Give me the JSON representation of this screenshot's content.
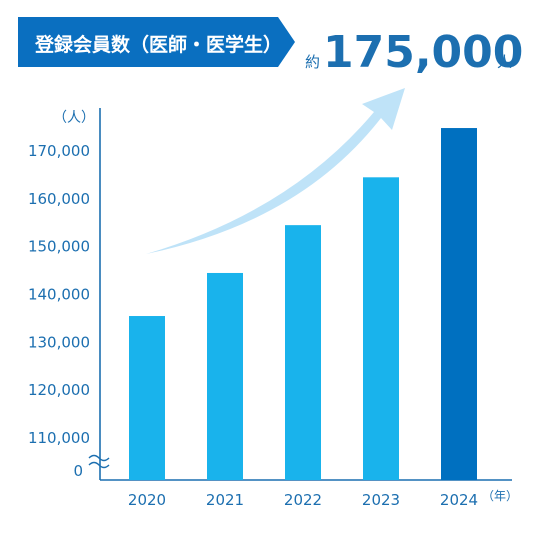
{
  "header": {
    "badge_label": "登録会員数（医師・医学生）",
    "prefix": "約",
    "value": "175,000",
    "unit": "人"
  },
  "colors": {
    "badge_bg": "#0a6fc0",
    "bar_light": "#19b3ec",
    "bar_highlight": "#0070c0",
    "text_blue": "#1c6fb0",
    "axis": "#1c6fb0",
    "arrow": "#bfe3f8"
  },
  "chart_data": {
    "type": "bar",
    "categories": [
      "2020",
      "2021",
      "2022",
      "2023",
      "2024"
    ],
    "values": [
      135500,
      144500,
      154500,
      164500,
      174800
    ],
    "highlight_index": 4,
    "y_ticks": [
      "170,000",
      "160,000",
      "150,000",
      "140,000",
      "130,000",
      "120,000",
      "110,000"
    ],
    "y_tick_values": [
      170000,
      160000,
      150000,
      140000,
      130000,
      120000,
      110000
    ],
    "y_zero_label": "0",
    "ylim": [
      110000,
      175000
    ],
    "y_axis_break": true,
    "y_unit_label": "（人）",
    "x_unit_label": "（年）",
    "trend_arrow": true
  }
}
